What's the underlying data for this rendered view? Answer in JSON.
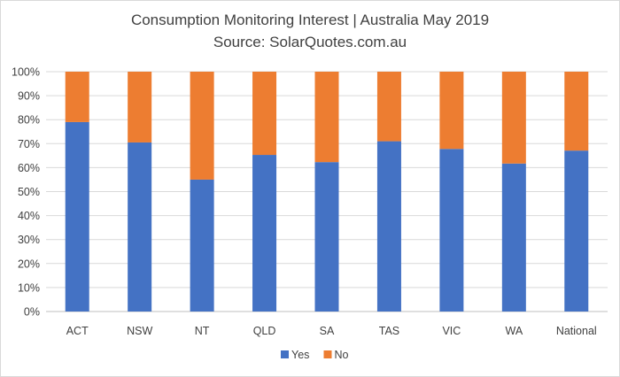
{
  "chart_data": {
    "type": "bar",
    "stacked": true,
    "title": "Consumption Monitoring Interest | Australia May 2019",
    "subtitle": "Source: SolarQuotes.com.au",
    "categories": [
      "ACT",
      "NSW",
      "NT",
      "QLD",
      "SA",
      "TAS",
      "VIC",
      "WA",
      "National"
    ],
    "series": [
      {
        "name": "Yes",
        "color": "#4472c4",
        "values": [
          79,
          70.5,
          55,
          65.3,
          62.3,
          71,
          67.8,
          61.7,
          67.1
        ]
      },
      {
        "name": "No",
        "color": "#ed7d31",
        "values": [
          21,
          29.5,
          45,
          34.7,
          37.7,
          29,
          32.2,
          38.3,
          32.9
        ]
      }
    ],
    "yticks": [
      "0%",
      "10%",
      "20%",
      "30%",
      "40%",
      "50%",
      "60%",
      "70%",
      "80%",
      "90%",
      "100%"
    ],
    "ylim": [
      0,
      100
    ],
    "grid": true,
    "legend_position": "bottom"
  }
}
